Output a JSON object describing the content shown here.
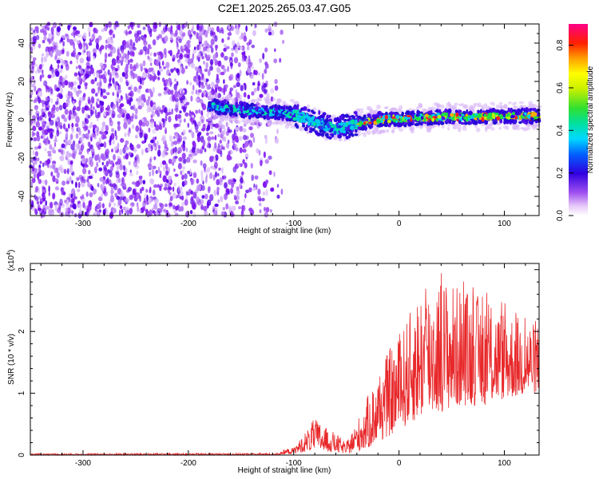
{
  "chart_data": [
    {
      "type": "heatmap",
      "title": "C2E1.2025.265.03.47.G05",
      "xlabel": "Height of straight line (km)",
      "ylabel": "Frequency (Hz)",
      "xlim": [
        -350,
        133
      ],
      "ylim": [
        -50,
        50
      ],
      "x_ticks": [
        -300,
        -200,
        -100,
        0,
        100
      ],
      "y_ticks": [
        -40,
        -20,
        0,
        20,
        40
      ],
      "noise_region_x": [
        -350,
        -115
      ],
      "signal_start_x": -180,
      "signal_track": {
        "x": [
          -180,
          -160,
          -140,
          -120,
          -100,
          -90,
          -80,
          -70,
          -60,
          -55,
          -50,
          -40,
          -30,
          -20,
          0,
          20,
          40,
          60,
          80,
          100,
          133
        ],
        "y": [
          7,
          6,
          4.5,
          4,
          3,
          1,
          -1,
          -3,
          -5,
          -4,
          -4,
          -2,
          -1,
          0,
          0.5,
          1,
          1.5,
          1.5,
          1.5,
          2,
          2
        ]
      },
      "colorbar": {
        "label": "Normalized spectral amplitude",
        "range": [
          0,
          0.9
        ],
        "ticks": [
          0.0,
          0.2,
          0.4,
          0.6,
          0.8
        ]
      }
    },
    {
      "type": "line",
      "title": "",
      "xlabel": "Height of straight line (km)",
      "ylabel": "SNR (10 * v/v)",
      "multiplier_label": "(x10",
      "multiplier_exp": "4",
      "multiplier_close": ")",
      "xlim": [
        -350,
        133
      ],
      "ylim": [
        0,
        3.1
      ],
      "x_ticks": [
        -300,
        -200,
        -100,
        0,
        100
      ],
      "y_ticks": [
        0,
        1,
        2,
        3
      ],
      "line_color": "#e8282a",
      "envelope": {
        "x": [
          -350,
          -120,
          -100,
          -90,
          -80,
          -70,
          -60,
          -50,
          -40,
          -30,
          -20,
          -10,
          0,
          20,
          40,
          60,
          80,
          100,
          133
        ],
        "upper": [
          0.05,
          0.06,
          0.12,
          0.35,
          0.6,
          0.45,
          0.35,
          0.2,
          0.55,
          0.95,
          1.3,
          1.7,
          1.9,
          2.7,
          2.9,
          2.7,
          2.55,
          2.35,
          2.1
        ],
        "lower": [
          0.0,
          0.0,
          0.02,
          0.05,
          0.08,
          0.06,
          0.04,
          0.02,
          0.05,
          0.1,
          0.2,
          0.3,
          0.4,
          0.6,
          0.7,
          0.8,
          0.8,
          0.9,
          1.0
        ]
      }
    }
  ]
}
